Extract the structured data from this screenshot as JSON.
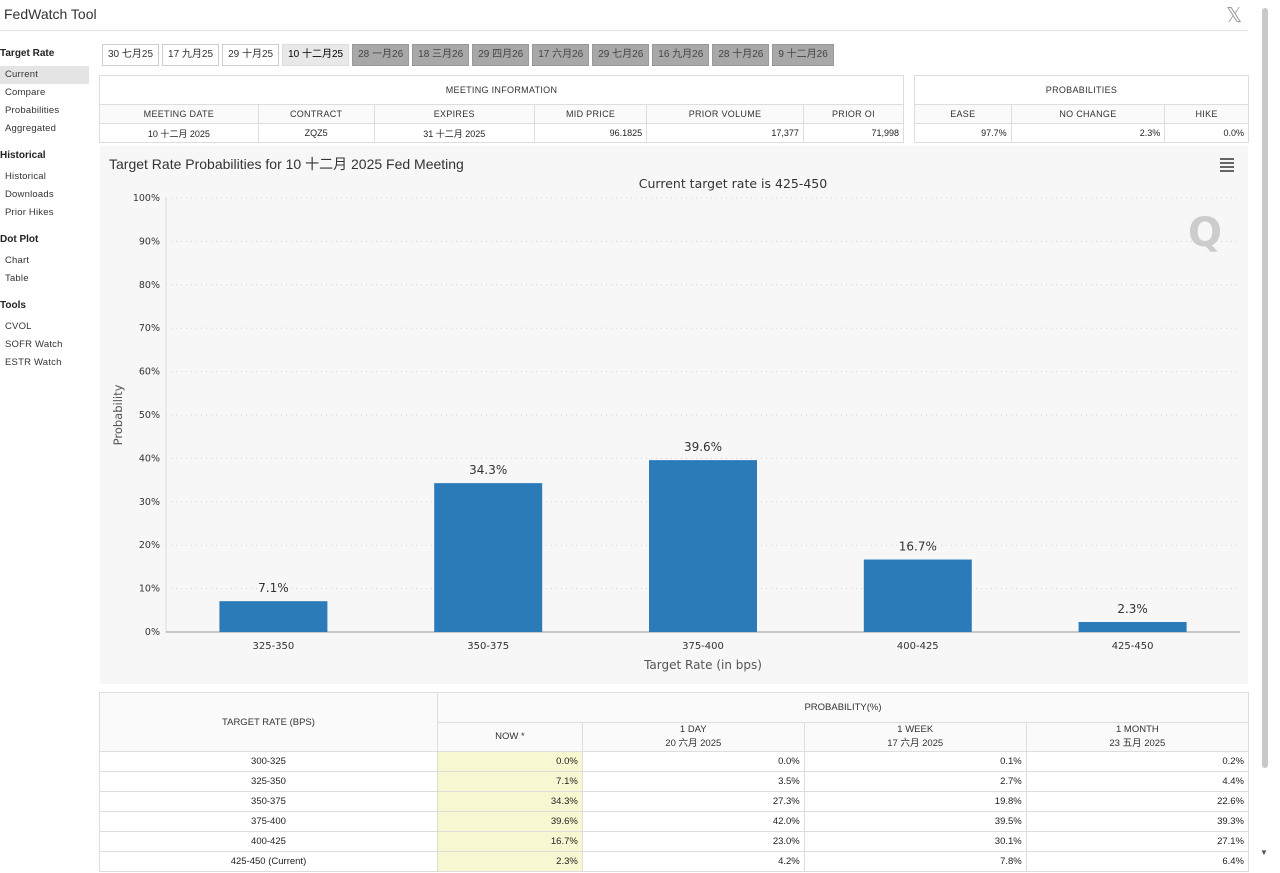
{
  "app": {
    "title": "FedWatch Tool",
    "close_label": "𝕏"
  },
  "sidebar": {
    "groups": [
      {
        "label": "Target Rate",
        "items": [
          "Current",
          "Compare",
          "Probabilities",
          "Aggregated"
        ]
      },
      {
        "label": "Historical",
        "items": [
          "Historical",
          "Downloads",
          "Prior Hikes"
        ]
      },
      {
        "label": "Dot Plot",
        "items": [
          "Chart",
          "Table"
        ]
      },
      {
        "label": "Tools",
        "items": [
          "CVOL",
          "SOFR Watch",
          "ESTR Watch"
        ]
      }
    ],
    "active": "Current"
  },
  "tabs": [
    {
      "label": "30 七月25",
      "state": "normal"
    },
    {
      "label": "17 九月25",
      "state": "normal"
    },
    {
      "label": "29 十月25",
      "state": "normal"
    },
    {
      "label": "10 十二月25",
      "state": "selected"
    },
    {
      "label": "28 一月26",
      "state": "disabled"
    },
    {
      "label": "18 三月26",
      "state": "disabled"
    },
    {
      "label": "29 四月26",
      "state": "disabled"
    },
    {
      "label": "17 六月26",
      "state": "disabled"
    },
    {
      "label": "29 七月26",
      "state": "disabled"
    },
    {
      "label": "16 九月26",
      "state": "disabled"
    },
    {
      "label": "28 十月26",
      "state": "disabled"
    },
    {
      "label": "9 十二月26",
      "state": "disabled"
    }
  ],
  "meeting_info": {
    "header": "MEETING INFORMATION",
    "columns": [
      "MEETING DATE",
      "CONTRACT",
      "EXPIRES",
      "MID PRICE",
      "PRIOR VOLUME",
      "PRIOR OI"
    ],
    "row": [
      "10 十二月 2025",
      "ZQZ5",
      "31 十二月 2025",
      "96.1825",
      "17,377",
      "71,998"
    ]
  },
  "probabilities": {
    "header": "PROBABILITIES",
    "columns": [
      "EASE",
      "NO CHANGE",
      "HIKE"
    ],
    "row": [
      "97.7%",
      "2.3%",
      "0.0%"
    ]
  },
  "chart_panel": {
    "title": "Target Rate Probabilities for 10 十二月 2025 Fed Meeting",
    "watermark": "Q"
  },
  "chart_data": {
    "type": "bar",
    "title": "Current target rate is 425-450",
    "xlabel": "Target Rate (in bps)",
    "ylabel": "Probability",
    "categories": [
      "325-350",
      "350-375",
      "375-400",
      "400-425",
      "425-450"
    ],
    "values": [
      7.1,
      34.3,
      39.6,
      16.7,
      2.3
    ],
    "data_labels": [
      "7.1%",
      "34.3%",
      "39.6%",
      "16.7%",
      "2.3%"
    ],
    "ylim": [
      0,
      100
    ],
    "yticks": [
      "0%",
      "10%",
      "20%",
      "30%",
      "40%",
      "50%",
      "60%",
      "70%",
      "80%",
      "90%",
      "100%"
    ],
    "grid": true,
    "bar_color": "#2b7bb9"
  },
  "prob_table": {
    "row_header": "TARGET RATE (BPS)",
    "group_header": "PROBABILITY(%)",
    "columns": [
      {
        "line1": "NOW *",
        "line2": ""
      },
      {
        "line1": "1 DAY",
        "line2": "20 六月 2025"
      },
      {
        "line1": "1 WEEK",
        "line2": "17 六月 2025"
      },
      {
        "line1": "1 MONTH",
        "line2": "23 五月 2025"
      }
    ],
    "rows": [
      {
        "rate": "300-325",
        "values": [
          "0.0%",
          "0.0%",
          "0.1%",
          "0.2%"
        ]
      },
      {
        "rate": "325-350",
        "values": [
          "7.1%",
          "3.5%",
          "2.7%",
          "4.4%"
        ]
      },
      {
        "rate": "350-375",
        "values": [
          "34.3%",
          "27.3%",
          "19.8%",
          "22.6%"
        ]
      },
      {
        "rate": "375-400",
        "values": [
          "39.6%",
          "42.0%",
          "39.5%",
          "39.3%"
        ]
      },
      {
        "rate": "400-425",
        "values": [
          "16.7%",
          "23.0%",
          "30.1%",
          "27.1%"
        ]
      },
      {
        "rate": "425-450 (Current)",
        "values": [
          "2.3%",
          "4.2%",
          "7.8%",
          "6.4%"
        ]
      }
    ]
  }
}
